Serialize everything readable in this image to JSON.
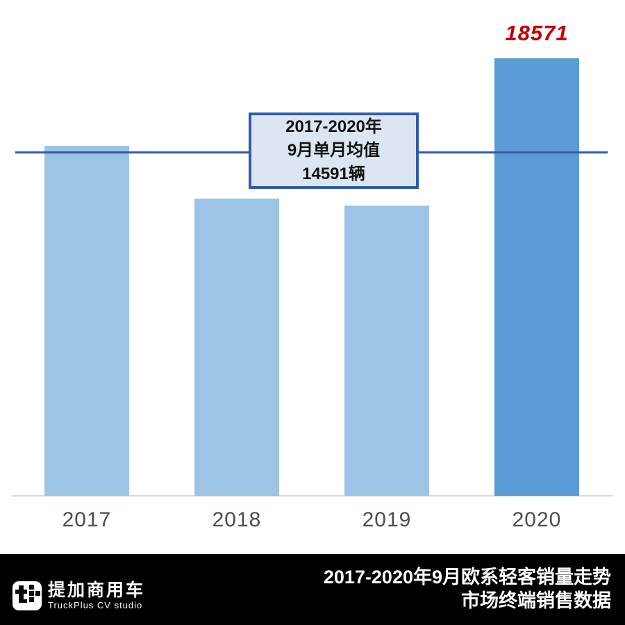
{
  "chart_data": {
    "type": "bar",
    "title": "2017-2020年9月欧系轻客销量走势",
    "subtitle": "市场终端销售数据",
    "categories": [
      "2017",
      "2018",
      "2019",
      "2020"
    ],
    "values": [
      14850,
      12620,
      12320,
      18571
    ],
    "value_labels": [
      "",
      "",
      "",
      "18571"
    ],
    "highlight_category": "2020",
    "mean_line": {
      "value": 14591,
      "label_lines": [
        "2017-2020年",
        "9月单月均值",
        "14591辆"
      ]
    },
    "ylim": [
      0,
      19600
    ],
    "xlabel": "",
    "ylabel": "",
    "grid": false,
    "legend": false
  },
  "colors": {
    "bar_regular": "#9DC3E6",
    "bar_highlight": "#5B9BD5",
    "mean_line": "#2F5CA8",
    "annotation_red": "#C00000",
    "axis_line": "#DADADA",
    "box_fill": "#DCE5F2",
    "footer_bg": "#000000",
    "footer_text": "#FFFFFF",
    "tick_label": "#4D4D4D"
  },
  "annotation": {
    "max_value_label": "18571"
  },
  "mean_box": {
    "line1": "2017-2020年",
    "line2": "9月单月均值",
    "line3": "14591辆"
  },
  "x_axis": {
    "labels": [
      "2017",
      "2018",
      "2019",
      "2020"
    ]
  },
  "footer": {
    "title_line1": "2017-2020年9月欧系轻客销量走势",
    "title_line2": "市场终端销售数据",
    "logo": {
      "name_cn": "提加商用车",
      "name_en": "TruckPlus CV studio",
      "icon": "truckplus-t-plus-icon"
    }
  }
}
